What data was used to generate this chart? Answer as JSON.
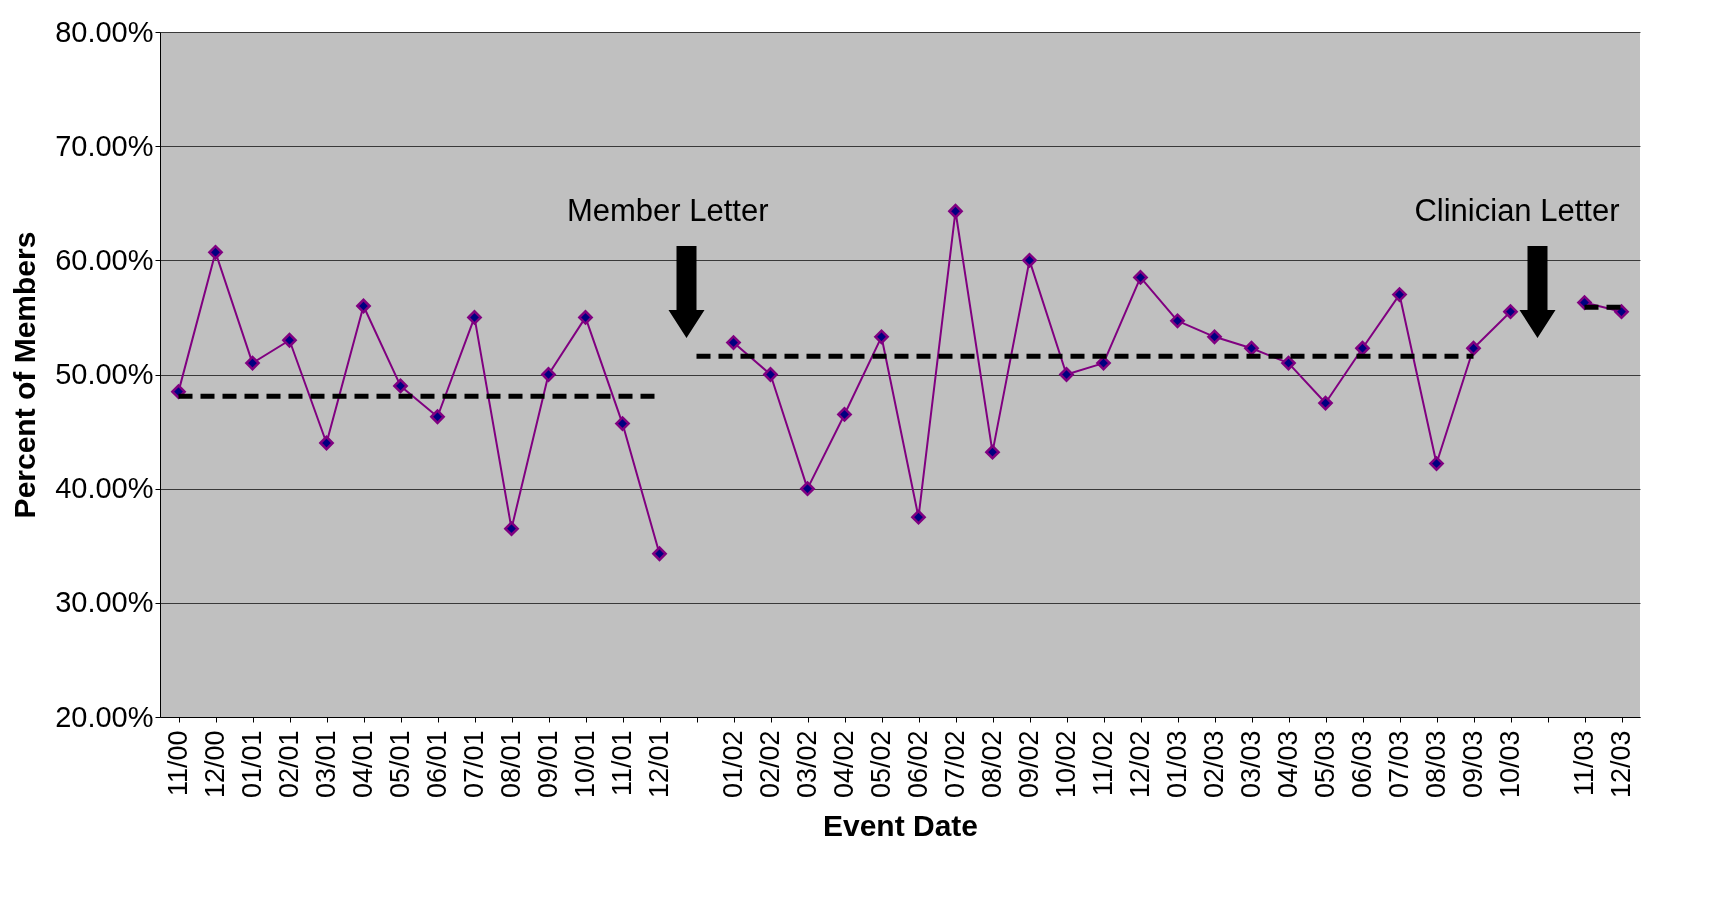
{
  "chart_data": {
    "type": "line",
    "xlabel": "Event Date",
    "ylabel": "Percent of Members",
    "categories": [
      "11/00",
      "12/00",
      "01/01",
      "02/01",
      "03/01",
      "04/01",
      "05/01",
      "06/01",
      "07/01",
      "08/01",
      "09/01",
      "10/01",
      "11/01",
      "12/01",
      null,
      "01/02",
      "02/02",
      "03/02",
      "04/02",
      "05/02",
      "06/02",
      "07/02",
      "08/02",
      "09/02",
      "10/02",
      "11/02",
      "12/02",
      "01/03",
      "02/03",
      "03/03",
      "04/03",
      "05/03",
      "06/03",
      "07/03",
      "08/03",
      "09/03",
      "10/03",
      null,
      "11/03",
      "12/03"
    ],
    "series": [
      {
        "color": "#800080",
        "marker": "diamond",
        "values": [
          48.5,
          60.7,
          51.0,
          53.0,
          44.0,
          56.0,
          49.0,
          46.3,
          55.0,
          36.5,
          50.0,
          55.0,
          45.7,
          34.3,
          null,
          52.8,
          50.0,
          40.0,
          46.5,
          53.3,
          37.5,
          64.3,
          43.2,
          60.0,
          50.0,
          51.0,
          58.5,
          54.7,
          53.3,
          52.3,
          51.0,
          47.5,
          52.3,
          57.0,
          42.2,
          52.3,
          55.5,
          null,
          56.3,
          55.5
        ]
      },
      {
        "color": "#000000",
        "marker": "none",
        "line_style": "dashed",
        "values": [
          48.1,
          48.1,
          48.1,
          48.1,
          48.1,
          48.1,
          48.1,
          48.1,
          48.1,
          48.1,
          48.1,
          48.1,
          48.1,
          48.1,
          null,
          null,
          null,
          null,
          null,
          null,
          null,
          null,
          null,
          null,
          null,
          null,
          null,
          null,
          null,
          null,
          null,
          null,
          null,
          null,
          null,
          null,
          null,
          null,
          null,
          null
        ]
      },
      {
        "color": "#000000",
        "marker": "none",
        "line_style": "dashed",
        "values": [
          null,
          null,
          null,
          null,
          null,
          null,
          null,
          null,
          null,
          null,
          null,
          null,
          null,
          null,
          51.6,
          51.6,
          51.6,
          51.6,
          51.6,
          51.6,
          51.6,
          51.6,
          51.6,
          51.6,
          51.6,
          51.6,
          51.6,
          51.6,
          51.6,
          51.6,
          51.6,
          51.6,
          51.6,
          51.6,
          51.6,
          51.6,
          null,
          null,
          null,
          null
        ]
      },
      {
        "color": "#000000",
        "marker": "none",
        "line_style": "dashed",
        "values": [
          null,
          null,
          null,
          null,
          null,
          null,
          null,
          null,
          null,
          null,
          null,
          null,
          null,
          null,
          null,
          null,
          null,
          null,
          null,
          null,
          null,
          null,
          null,
          null,
          null,
          null,
          null,
          null,
          null,
          null,
          null,
          null,
          null,
          null,
          null,
          null,
          null,
          null,
          55.9,
          55.9
        ]
      }
    ],
    "ylim": [
      20,
      80
    ],
    "yticks": [
      {
        "value": 20,
        "label": "20.00%"
      },
      {
        "value": 30,
        "label": "30.00%"
      },
      {
        "value": 40,
        "label": "40.00%"
      },
      {
        "value": 50,
        "label": "50.00%"
      },
      {
        "value": 60,
        "label": "60.00%"
      },
      {
        "value": 70,
        "label": "70.00%"
      },
      {
        "value": 80,
        "label": "80.00%"
      }
    ],
    "grid": "y",
    "annotations": [
      "Member Letter",
      "Clinician Letter"
    ]
  }
}
